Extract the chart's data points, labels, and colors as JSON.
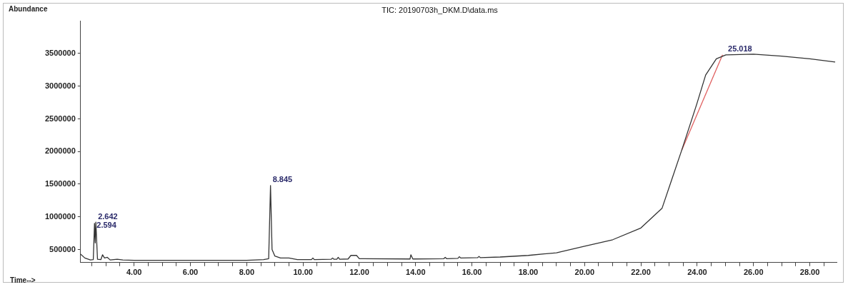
{
  "chart_data": {
    "type": "line",
    "title": "TIC: 20190703h_DKM.D\\data.ms",
    "xlabel": "Time-->",
    "ylabel": "Abundance",
    "xlim": [
      2.1,
      28.95
    ],
    "ylim": [
      300000,
      4000000
    ],
    "xticks": [
      {
        "value": 2.5,
        "label": null
      },
      {
        "value": 3,
        "label": null
      },
      {
        "value": 3.5,
        "label": null
      },
      {
        "value": 4,
        "label": "4.00"
      },
      {
        "value": 4.5,
        "label": null
      },
      {
        "value": 5,
        "label": null
      },
      {
        "value": 5.5,
        "label": null
      },
      {
        "value": 6,
        "label": "6.00"
      },
      {
        "value": 6.5,
        "label": null
      },
      {
        "value": 7,
        "label": null
      },
      {
        "value": 7.5,
        "label": null
      },
      {
        "value": 8,
        "label": "8.00"
      },
      {
        "value": 8.5,
        "label": null
      },
      {
        "value": 9,
        "label": null
      },
      {
        "value": 9.5,
        "label": null
      },
      {
        "value": 10,
        "label": "10.00"
      },
      {
        "value": 10.5,
        "label": null
      },
      {
        "value": 11,
        "label": null
      },
      {
        "value": 11.5,
        "label": null
      },
      {
        "value": 12,
        "label": "12.00"
      },
      {
        "value": 12.5,
        "label": null
      },
      {
        "value": 13,
        "label": null
      },
      {
        "value": 13.5,
        "label": null
      },
      {
        "value": 14,
        "label": "14.00"
      },
      {
        "value": 14.5,
        "label": null
      },
      {
        "value": 15,
        "label": null
      },
      {
        "value": 15.5,
        "label": null
      },
      {
        "value": 16,
        "label": "16.00"
      },
      {
        "value": 16.5,
        "label": null
      },
      {
        "value": 17,
        "label": null
      },
      {
        "value": 17.5,
        "label": null
      },
      {
        "value": 18,
        "label": "18.00"
      },
      {
        "value": 18.5,
        "label": null
      },
      {
        "value": 19,
        "label": null
      },
      {
        "value": 19.5,
        "label": null
      },
      {
        "value": 20,
        "label": "20.00"
      },
      {
        "value": 20.5,
        "label": null
      },
      {
        "value": 21,
        "label": null
      },
      {
        "value": 21.5,
        "label": null
      },
      {
        "value": 22,
        "label": "22.00"
      },
      {
        "value": 22.5,
        "label": null
      },
      {
        "value": 23,
        "label": null
      },
      {
        "value": 23.5,
        "label": null
      },
      {
        "value": 24,
        "label": "24.00"
      },
      {
        "value": 24.5,
        "label": null
      },
      {
        "value": 25,
        "label": null
      },
      {
        "value": 25.5,
        "label": null
      },
      {
        "value": 26,
        "label": "26.00"
      },
      {
        "value": 26.5,
        "label": null
      },
      {
        "value": 27,
        "label": null
      },
      {
        "value": 27.5,
        "label": null
      },
      {
        "value": 28,
        "label": "28.00"
      },
      {
        "value": 28.5,
        "label": null
      }
    ],
    "yticks": [
      500000,
      1000000,
      1500000,
      2000000,
      2500000,
      3000000,
      3500000
    ],
    "grid": false,
    "legend": false,
    "marker": "none",
    "line_style": "solid",
    "series": [
      {
        "color": "#333333",
        "x": [
          2.1,
          2.25,
          2.45,
          2.55,
          2.594,
          2.62,
          2.642,
          2.7,
          2.82,
          2.88,
          2.95,
          3.05,
          3.15,
          3.4,
          3.6,
          4,
          6,
          8,
          8.6,
          8.78,
          8.845,
          8.9,
          9,
          9.2,
          9.5,
          9.8,
          10.3,
          10.35,
          10.4,
          11,
          11.05,
          11.1,
          11.2,
          11.25,
          11.3,
          11.6,
          11.7,
          11.9,
          12,
          13.8,
          13.83,
          13.9,
          15,
          15.05,
          15.1,
          15.5,
          15.55,
          15.6,
          16.2,
          16.25,
          16.3,
          17,
          18,
          19,
          20,
          21,
          22,
          22.75,
          23.45,
          23.98,
          24.3,
          24.68,
          25.018,
          26,
          27,
          28,
          28.9
        ],
        "values": [
          430000,
          370000,
          340000,
          345000,
          900000,
          600000,
          920000,
          350000,
          345000,
          420000,
          370000,
          380000,
          340000,
          350000,
          340000,
          335000,
          335000,
          335000,
          345000,
          360000,
          1480000,
          500000,
          400000,
          370000,
          370000,
          345000,
          345000,
          370000,
          345000,
          350000,
          370000,
          350000,
          350000,
          380000,
          350000,
          355000,
          410000,
          410000,
          360000,
          355000,
          420000,
          355000,
          360000,
          380000,
          360000,
          365000,
          390000,
          370000,
          375000,
          395000,
          375000,
          385000,
          410000,
          450000,
          550000,
          650000,
          830000,
          1130000,
          2020000,
          2720000,
          3170000,
          3420000,
          3480000,
          3490000,
          3460000,
          3420000,
          3370000
        ]
      },
      {
        "color": "#e06060",
        "x": [
          23.45,
          24.9
        ],
        "values": [
          2020000,
          3480000
        ]
      }
    ],
    "annotations": [
      {
        "text": "2.642",
        "x": 2.642,
        "y": 920000
      },
      {
        "text": "2.594",
        "x": 2.594,
        "y": 900000
      },
      {
        "text": "8.845",
        "x": 8.845,
        "y": 1480000
      },
      {
        "text": "25.018",
        "x": 25.018,
        "y": 3480000
      }
    ]
  }
}
